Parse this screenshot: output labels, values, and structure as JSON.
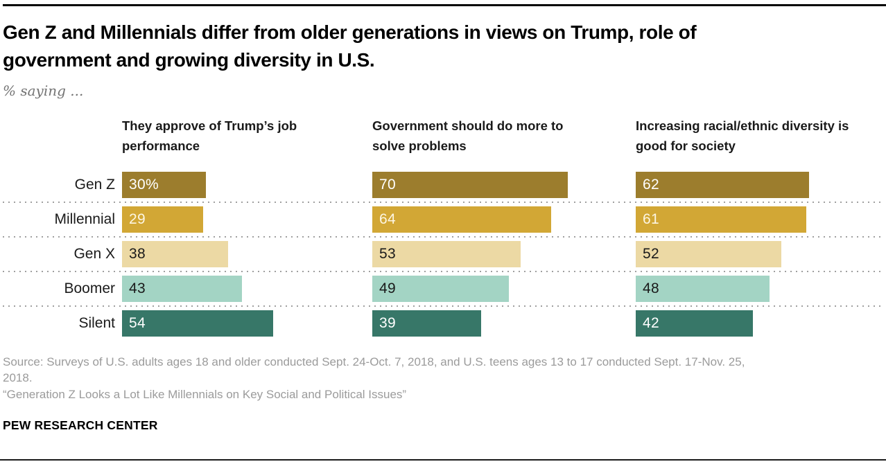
{
  "header": {
    "title_line1": "Gen Z and Millennials differ from older generations in views on Trump, role of",
    "title_line2": "government and growing diversity in U.S.",
    "subtitle": "% saying ..."
  },
  "chart_data": {
    "type": "bar",
    "orientation": "horizontal",
    "categories": [
      "Gen Z",
      "Millennial",
      "Gen X",
      "Boomer",
      "Silent"
    ],
    "row_colors": [
      "#9c7d2d",
      "#d2a735",
      "#ecd9a4",
      "#a3d4c4",
      "#377768"
    ],
    "row_text_colors": [
      "#ffffff",
      "#fdf6e3",
      "#1a1a1a",
      "#1a1a1a",
      "#ffffff"
    ],
    "axis": {
      "value_axis_visible": false,
      "xlim": [
        0,
        89
      ],
      "grid": "dotted row separators only"
    },
    "panels": [
      {
        "title": "They approve of Trump’s job performance",
        "values": [
          30,
          29,
          38,
          43,
          54
        ],
        "value_labels": [
          "30%",
          "29",
          "38",
          "43",
          "54"
        ]
      },
      {
        "title": "Government should do more to solve problems",
        "values": [
          70,
          64,
          53,
          49,
          39
        ],
        "value_labels": [
          "70",
          "64",
          "53",
          "49",
          "39"
        ]
      },
      {
        "title": "Increasing racial/ethnic diversity is good for society",
        "values": [
          62,
          61,
          52,
          48,
          42
        ],
        "value_labels": [
          "62",
          "61",
          "52",
          "48",
          "42"
        ]
      }
    ]
  },
  "footer": {
    "source_line1": "Source: Surveys of U.S. adults ages 18 and older conducted Sept. 24-Oct. 7, 2018, and U.S. teens ages 13 to 17 conducted Sept. 17-Nov. 25,",
    "source_line2": "2018.",
    "report_title": "“Generation Z Looks a Lot Like Millennials on Key Social and Political Issues”",
    "brand": "PEW RESEARCH CENTER"
  }
}
